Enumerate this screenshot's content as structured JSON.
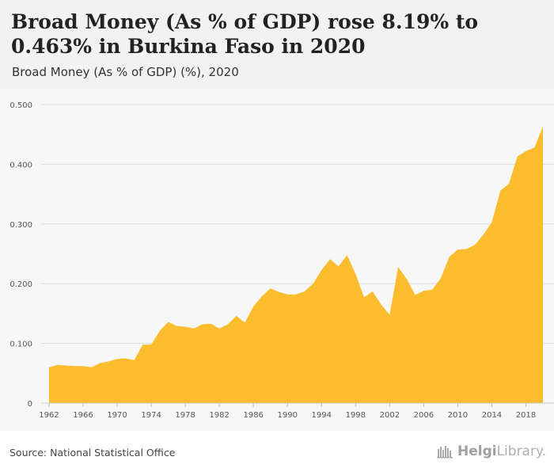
{
  "header": {
    "title": "Broad Money (As % of GDP) rose 8.19% to 0.463% in Burkina Faso in 2020",
    "subtitle": "Broad Money (As % of GDP) (%), 2020"
  },
  "footer": {
    "source": "Source: National Statistical Office",
    "brand_bold": "Helgi",
    "brand_light": "Library."
  },
  "colors": {
    "area_fill": "#fbbd2e",
    "grid": "#dddddd",
    "tick_text": "#555555"
  },
  "chart_data": {
    "type": "area",
    "title": "Broad Money (As % of GDP) rose 8.19% to 0.463% in Burkina Faso in 2020",
    "subtitle": "Broad Money (As % of GDP) (%), 2020",
    "x": [
      1962,
      1963,
      1964,
      1965,
      1966,
      1967,
      1968,
      1969,
      1970,
      1971,
      1972,
      1973,
      1974,
      1975,
      1976,
      1977,
      1978,
      1979,
      1980,
      1981,
      1982,
      1983,
      1984,
      1985,
      1986,
      1987,
      1988,
      1989,
      1990,
      1991,
      1992,
      1993,
      1994,
      1995,
      1996,
      1997,
      1998,
      1999,
      2000,
      2001,
      2002,
      2003,
      2004,
      2005,
      2006,
      2007,
      2008,
      2009,
      2010,
      2011,
      2012,
      2013,
      2014,
      2015,
      2016,
      2017,
      2018,
      2019,
      2020
    ],
    "values": [
      0.06,
      0.064,
      0.063,
      0.062,
      0.062,
      0.06,
      0.067,
      0.07,
      0.074,
      0.075,
      0.072,
      0.098,
      0.098,
      0.121,
      0.136,
      0.129,
      0.128,
      0.125,
      0.132,
      0.133,
      0.125,
      0.132,
      0.146,
      0.135,
      0.162,
      0.179,
      0.192,
      0.186,
      0.182,
      0.182,
      0.187,
      0.2,
      0.223,
      0.241,
      0.229,
      0.248,
      0.216,
      0.177,
      0.187,
      0.165,
      0.148,
      0.228,
      0.208,
      0.181,
      0.188,
      0.19,
      0.209,
      0.245,
      0.257,
      0.258,
      0.265,
      0.282,
      0.303,
      0.356,
      0.367,
      0.413,
      0.422,
      0.428,
      0.463
    ],
    "ylim": [
      0,
      0.5
    ],
    "yticks": [
      "0",
      "0.100",
      "0.200",
      "0.300",
      "0.400",
      "0.500"
    ],
    "ytick_values": [
      0,
      0.1,
      0.2,
      0.3,
      0.4,
      0.5
    ],
    "xticks": [
      "1962",
      "1966",
      "1970",
      "1974",
      "1978",
      "1982",
      "1986",
      "1990",
      "1994",
      "1998",
      "2002",
      "2006",
      "2010",
      "2014",
      "2018"
    ],
    "xtick_values": [
      1962,
      1966,
      1970,
      1974,
      1978,
      1982,
      1986,
      1990,
      1994,
      1998,
      2002,
      2006,
      2010,
      2014,
      2018
    ],
    "xlabel": "",
    "ylabel": "",
    "grid": true,
    "legend": "none"
  }
}
